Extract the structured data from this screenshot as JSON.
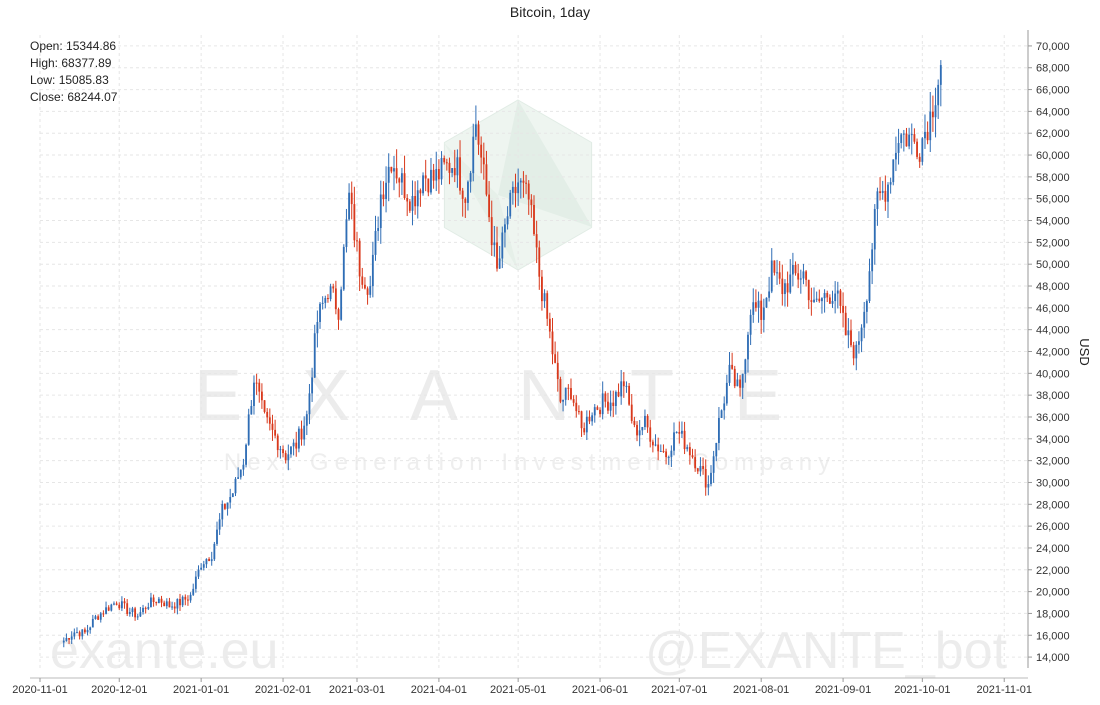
{
  "header": {
    "title": "Bitcoin, 1day"
  },
  "ohlc": {
    "open_label": "Open:",
    "open": "15344.86",
    "high_label": "High:",
    "high": "68377.89",
    "low_label": "Low:",
    "low": "15085.83",
    "close_label": "Close:",
    "close": "68244.07"
  },
  "watermarks": {
    "logo_text": "EXANTE",
    "tagline": "Next Generation Investment Company",
    "site": "exante.eu",
    "bot": "@EXANTE_bot"
  },
  "colors": {
    "up": "#2f6db5",
    "down": "#d9391c",
    "grid": "#e6e6e6",
    "watermark": "#e9f1ec"
  },
  "chart_data": {
    "type": "candlestick",
    "title": "Bitcoin, 1day",
    "ylabel": "USD",
    "ylim": [
      13000,
      71000
    ],
    "xlim": [
      "2020-11-01",
      "2021-11-10"
    ],
    "y_ticks": [
      14000,
      16000,
      18000,
      20000,
      22000,
      24000,
      26000,
      28000,
      30000,
      32000,
      34000,
      36000,
      38000,
      40000,
      42000,
      44000,
      46000,
      48000,
      50000,
      52000,
      54000,
      56000,
      58000,
      60000,
      62000,
      64000,
      66000,
      68000,
      70000
    ],
    "y_tick_labels": [
      "14,000",
      "16,000",
      "18,000",
      "20,000",
      "22,000",
      "24,000",
      "26,000",
      "28,000",
      "30,000",
      "32,000",
      "34,000",
      "36,000",
      "38,000",
      "40,000",
      "42,000",
      "44,000",
      "46,000",
      "48,000",
      "50,000",
      "52,000",
      "54,000",
      "56,000",
      "58,000",
      "60,000",
      "62,000",
      "64,000",
      "66,000",
      "68,000",
      "70,000"
    ],
    "x_ticks": [
      "2020-11-01",
      "2020-12-01",
      "2021-01-01",
      "2021-02-01",
      "2021-03-01",
      "2021-04-01",
      "2021-05-01",
      "2021-06-01",
      "2021-07-01",
      "2021-08-01",
      "2021-09-01",
      "2021-10-01",
      "2021-11-01"
    ],
    "x_tick_labels": [
      "2020-11-01",
      "2020-12-01",
      "2021-01-01",
      "2021-02-01",
      "2021-03-01",
      "2021-04-01",
      "2021-05-01",
      "2021-06-01",
      "2021-07-01",
      "2021-08-01",
      "2021-09-01",
      "2021-10-01",
      "2021-11-01"
    ],
    "grid": true,
    "start_date": "2020-11-10",
    "closes_sampled_every_4_days": [
      15500,
      16300,
      16200,
      17600,
      18400,
      19100,
      18300,
      17800,
      18900,
      19300,
      18700,
      19000,
      19600,
      22600,
      23500,
      27400,
      29100,
      32000,
      39600,
      35700,
      34200,
      32500,
      33500,
      36100,
      44800,
      47700,
      46000,
      56100,
      49700,
      47900,
      56400,
      59800,
      57500,
      55900,
      58200,
      57800,
      58700,
      59400,
      56500,
      63000,
      56300,
      49200,
      54500,
      57500,
      55800,
      49000,
      43500,
      37400,
      38500,
      34700,
      36700,
      37300,
      37600,
      39200,
      34700,
      35400,
      33500,
      32600,
      34700,
      33400,
      31600,
      29800,
      35500,
      40000,
      38100,
      46200,
      45400,
      49300,
      47800,
      48800,
      49200,
      46000,
      47100,
      47600,
      43600,
      41800,
      47700,
      55800,
      57400,
      61900,
      61600,
      60900,
      63600,
      68244
    ],
    "series": [
      {
        "name": "Bitcoin",
        "direction_up_color": "#2f6db5",
        "direction_down_color": "#d9391c"
      }
    ]
  }
}
